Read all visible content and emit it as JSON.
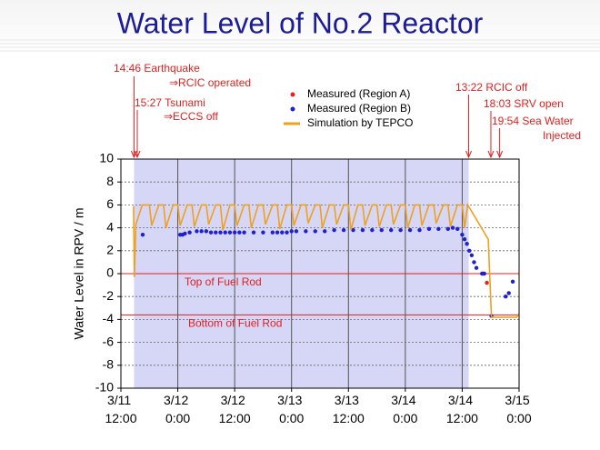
{
  "chart_data": {
    "type": "line",
    "title": "Water Level of No.2 Reactor",
    "y_label": "Water Level in RPV / m",
    "xlim": [
      "3/11 12:00",
      "3/15 0:00"
    ],
    "xticks": [
      "3/11 12:00",
      "3/12 0:00",
      "3/12 12:00",
      "3/13 0:00",
      "3/13 12:00",
      "3/14 0:00",
      "3/14 12:00",
      "3/15 0:00"
    ],
    "ylim": [
      -10,
      10
    ],
    "yticks": [
      -10,
      -8,
      -6,
      -4,
      -2,
      0,
      2,
      4,
      6,
      8,
      10
    ],
    "grid": true,
    "shaded_region": [
      "3/11 14:46",
      "3/14 13:22"
    ],
    "reference_lines": [
      {
        "value": 0,
        "label": "Top of Fuel Rod",
        "color": "#e02020"
      },
      {
        "value": -3.6,
        "label": "Bottom of Fuel Rod",
        "color": "#e02020"
      }
    ],
    "annotations": [
      {
        "x": "3/11 14:46",
        "lines": [
          "14:46 Earthquake",
          "⇒RCIC operated"
        ],
        "color": "#e02020"
      },
      {
        "x": "3/11 15:27",
        "lines": [
          "15:27 Tsunami",
          "⇒ECCS off"
        ],
        "color": "#e02020"
      },
      {
        "x": "3/14 13:22",
        "lines": [
          "13:22 RCIC off"
        ],
        "color": "#e02020"
      },
      {
        "x": "3/14 18:03",
        "lines": [
          "18:03 SRV open"
        ],
        "color": "#e02020"
      },
      {
        "x": "3/14 19:54",
        "lines": [
          "19:54 Sea Water",
          "Injected"
        ],
        "color": "#e02020"
      }
    ],
    "series": [
      {
        "name": "Measured (Region A)",
        "style": "markers",
        "color": "#e82020",
        "x": [
          "3/14 16:20",
          "3/14 17:12"
        ],
        "values": [
          0.0,
          -0.8
        ]
      },
      {
        "name": "Measured (Region B)",
        "style": "markers",
        "color": "#2020d0",
        "x": [
          "3/11 16:36",
          "3/12 0:30",
          "3/12 1:00",
          "3/12 1:30",
          "3/12 2:30",
          "3/12 4:00",
          "3/12 5:00",
          "3/12 6:00",
          "3/12 7:00",
          "3/12 8:00",
          "3/12 9:00",
          "3/12 10:00",
          "3/12 11:00",
          "3/12 12:00",
          "3/12 13:00",
          "3/12 14:00",
          "3/12 16:00",
          "3/12 18:00",
          "3/12 20:00",
          "3/12 21:00",
          "3/12 22:00",
          "3/12 23:00",
          "3/13 0:00",
          "3/13 1:00",
          "3/13 3:00",
          "3/13 5:00",
          "3/13 7:00",
          "3/13 9:00",
          "3/13 11:00",
          "3/13 13:00",
          "3/13 15:00",
          "3/13 17:00",
          "3/13 19:00",
          "3/13 21:00",
          "3/13 23:00",
          "3/14 1:00",
          "3/14 3:00",
          "3/14 5:00",
          "3/14 7:00",
          "3/14 9:00",
          "3/14 10:00",
          "3/14 11:00",
          "3/14 12:00",
          "3/14 12:30",
          "3/14 13:00",
          "3/14 13:30",
          "3/14 14:00",
          "3/14 14:30",
          "3/14 15:00",
          "3/14 16:10",
          "3/14 16:40",
          "3/14 18:10",
          "3/14 21:10",
          "3/14 21:50",
          "3/14 22:40"
        ],
        "values": [
          3.4,
          3.4,
          3.4,
          3.5,
          3.6,
          3.7,
          3.7,
          3.7,
          3.6,
          3.6,
          3.6,
          3.6,
          3.6,
          3.6,
          3.6,
          3.6,
          3.6,
          3.6,
          3.6,
          3.6,
          3.6,
          3.6,
          3.7,
          3.7,
          3.7,
          3.7,
          3.7,
          3.8,
          3.8,
          3.8,
          3.8,
          3.8,
          3.8,
          3.8,
          3.8,
          3.8,
          3.8,
          3.9,
          3.9,
          3.9,
          4.0,
          3.9,
          3.4,
          3.0,
          2.6,
          2.0,
          1.6,
          1.0,
          0.5,
          0.0,
          0.0,
          -3.7,
          -2.0,
          -1.7,
          -0.7
        ]
      },
      {
        "name": "Simulation by TEPCO",
        "style": "line",
        "color": "#f0a020",
        "x": [
          "3/11 14:40",
          "3/11 14:50",
          "3/11 15:10",
          "3/11 16:30",
          "3/11 18:00",
          "3/11 18:30",
          "3/11 20:00",
          "3/11 21:00",
          "3/11 21:30",
          "3/11 23:00",
          "3/12 0:00",
          "3/12 0:30",
          "3/12 2:00",
          "3/12 3:00",
          "3/12 3:30",
          "3/12 5:00",
          "3/12 6:00",
          "3/12 6:30",
          "3/12 8:00",
          "3/12 9:00",
          "3/12 9:30",
          "3/12 11:00",
          "3/12 12:00",
          "3/12 12:30",
          "3/12 14:00",
          "3/12 15:00",
          "3/12 15:30",
          "3/12 17:00",
          "3/12 18:00",
          "3/12 18:30",
          "3/12 20:00",
          "3/12 21:00",
          "3/12 21:30",
          "3/12 23:00",
          "3/13 0:00",
          "3/13 0:30",
          "3/13 2:00",
          "3/13 3:00",
          "3/13 3:30",
          "3/13 5:00",
          "3/13 6:00",
          "3/13 6:30",
          "3/13 8:00",
          "3/13 9:00",
          "3/13 9:30",
          "3/13 11:00",
          "3/13 12:00",
          "3/13 12:30",
          "3/13 14:00",
          "3/13 15:00",
          "3/13 15:30",
          "3/13 17:00",
          "3/13 18:00",
          "3/13 18:30",
          "3/13 20:00",
          "3/13 21:00",
          "3/13 21:30",
          "3/13 23:00",
          "3/14 0:00",
          "3/14 0:30",
          "3/14 2:00",
          "3/14 3:00",
          "3/14 3:30",
          "3/14 5:00",
          "3/14 6:00",
          "3/14 6:30",
          "3/14 8:00",
          "3/14 9:00",
          "3/14 9:30",
          "3/14 11:00",
          "3/14 12:00",
          "3/14 12:30",
          "3/14 13:10",
          "3/14 17:30",
          "3/14 18:10",
          "3/14 23:30",
          "3/15 0:00"
        ],
        "values": [
          5.9,
          -0.3,
          4.3,
          6.0,
          6.0,
          4.2,
          6.0,
          6.0,
          4.0,
          6.0,
          6.0,
          4.2,
          6.0,
          6.0,
          4.1,
          6.0,
          6.0,
          4.3,
          6.0,
          6.0,
          3.8,
          6.0,
          6.0,
          4.2,
          6.0,
          6.0,
          4.0,
          6.0,
          6.0,
          4.3,
          6.0,
          6.0,
          3.9,
          6.0,
          6.0,
          4.2,
          6.0,
          6.0,
          4.4,
          6.0,
          6.0,
          4.0,
          6.0,
          6.0,
          4.3,
          6.0,
          6.0,
          3.8,
          6.0,
          6.0,
          4.2,
          6.0,
          6.0,
          4.1,
          6.0,
          6.0,
          4.3,
          6.0,
          6.0,
          4.0,
          6.0,
          6.0,
          4.2,
          6.0,
          6.0,
          4.4,
          6.0,
          6.0,
          4.1,
          6.0,
          6.0,
          4.0,
          6.0,
          3.0,
          -3.8,
          -3.8,
          -3.5
        ]
      }
    ]
  }
}
